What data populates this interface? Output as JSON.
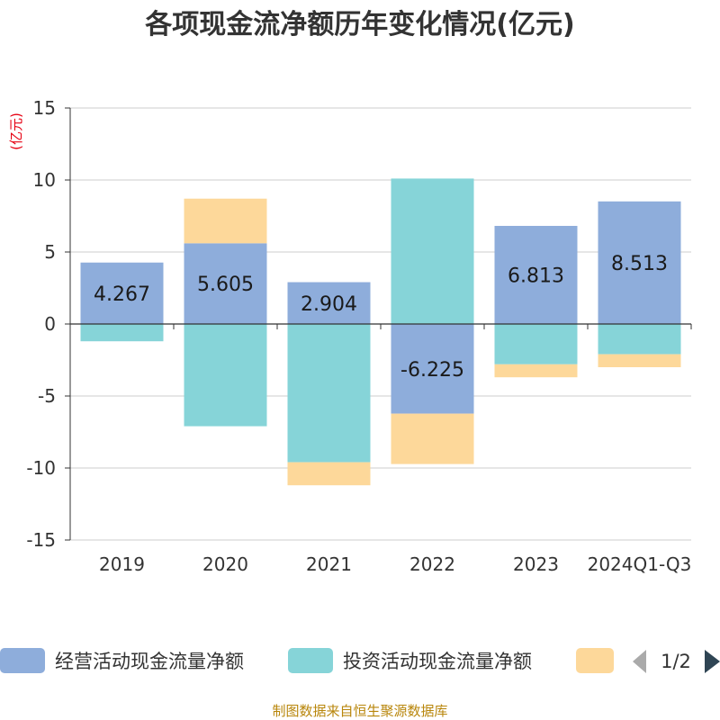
{
  "title": "各项现金流净额历年变化情况(亿元)",
  "unit_label": "(亿元)",
  "source": "制图数据来自恒生聚源数据库",
  "legend": {
    "items": [
      {
        "name": "经营活动现金流量净额",
        "color": "#8eaddb"
      },
      {
        "name": "投资活动现金流量净额",
        "color": "#86d4d8"
      },
      {
        "name": "",
        "color": "#fdd89a"
      }
    ],
    "page": "1/2",
    "prev_icon": "triangle-left-icon",
    "next_icon": "triangle-right-icon"
  },
  "chart_data": {
    "type": "bar",
    "stacked": true,
    "categories": [
      "2019",
      "2020",
      "2021",
      "2022",
      "2023",
      "2024Q1-Q3"
    ],
    "series": [
      {
        "name": "经营活动现金流量净额",
        "color": "#8eaddb",
        "values": [
          4.267,
          5.605,
          2.904,
          -6.225,
          6.813,
          8.513
        ],
        "show_labels": true
      },
      {
        "name": "投资活动现金流量净额",
        "color": "#86d4d8",
        "values": [
          -1.2,
          -7.1,
          -9.6,
          10.1,
          -2.8,
          -2.1
        ],
        "show_labels": false
      },
      {
        "name": "",
        "color": "#fdd89a",
        "values": [
          0,
          3.1,
          -1.6,
          -3.5,
          -0.9,
          -0.9
        ],
        "show_labels": false
      }
    ],
    "ylim": [
      -15,
      15
    ],
    "yticks": [
      15,
      10,
      5,
      0,
      -5,
      -10,
      -15
    ],
    "grid": true,
    "legend_position": "bottom"
  }
}
